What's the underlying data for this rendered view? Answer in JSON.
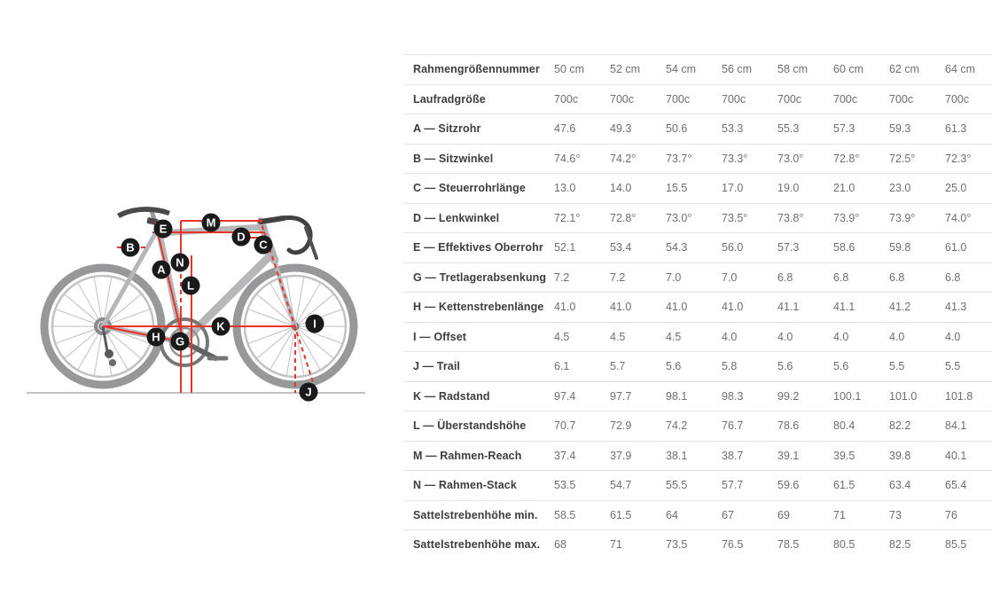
{
  "colors": {
    "accent_red": "#e8352b",
    "frame_gray": "#b7b7b9",
    "component_dark": "#47474a",
    "badge_black": "#1a1a1c",
    "table_border": "#e4e4e4",
    "label_text": "#3d3d3d",
    "value_text": "#6e6e6e",
    "ground_line": "#aeaeb0"
  },
  "diagram": {
    "name": "bike-geometry-diagram",
    "badges": [
      "A",
      "B",
      "C",
      "D",
      "E",
      "G",
      "H",
      "I",
      "J",
      "K",
      "L",
      "M",
      "N"
    ]
  },
  "table": {
    "rows": [
      {
        "label": "Rahmengrößennummer",
        "values": [
          "50 cm",
          "52 cm",
          "54 cm",
          "56 cm",
          "58 cm",
          "60 cm",
          "62 cm",
          "64 cm"
        ]
      },
      {
        "label": "Laufradgröße",
        "values": [
          "700c",
          "700c",
          "700c",
          "700c",
          "700c",
          "700c",
          "700c",
          "700c"
        ]
      },
      {
        "label": "A — Sitzrohr",
        "values": [
          "47.6",
          "49.3",
          "50.6",
          "53.3",
          "55.3",
          "57.3",
          "59.3",
          "61.3"
        ]
      },
      {
        "label": "B — Sitzwinkel",
        "values": [
          "74.6°",
          "74.2°",
          "73.7°",
          "73.3°",
          "73.0°",
          "72.8°",
          "72.5°",
          "72.3°"
        ]
      },
      {
        "label": "C — Steuerrohrlänge",
        "values": [
          "13.0",
          "14.0",
          "15.5",
          "17.0",
          "19.0",
          "21.0",
          "23.0",
          "25.0"
        ]
      },
      {
        "label": "D — Lenkwinkel",
        "values": [
          "72.1°",
          "72.8°",
          "73.0°",
          "73.5°",
          "73.8°",
          "73.9°",
          "73.9°",
          "74.0°"
        ]
      },
      {
        "label": "E — Effektives Oberrohr",
        "values": [
          "52.1",
          "53.4",
          "54.3",
          "56.0",
          "57.3",
          "58.6",
          "59.8",
          "61.0"
        ]
      },
      {
        "label": "G — Tretlagerabsenkung",
        "values": [
          "7.2",
          "7.2",
          "7.0",
          "7.0",
          "6.8",
          "6.8",
          "6.8",
          "6.8"
        ]
      },
      {
        "label": "H — Kettenstrebenlänge",
        "values": [
          "41.0",
          "41.0",
          "41.0",
          "41.0",
          "41.1",
          "41.1",
          "41.2",
          "41.3"
        ]
      },
      {
        "label": "I — Offset",
        "values": [
          "4.5",
          "4.5",
          "4.5",
          "4.0",
          "4.0",
          "4.0",
          "4.0",
          "4.0"
        ]
      },
      {
        "label": "J — Trail",
        "values": [
          "6.1",
          "5.7",
          "5.6",
          "5.8",
          "5.6",
          "5.6",
          "5.5",
          "5.5"
        ]
      },
      {
        "label": "K — Radstand",
        "values": [
          "97.4",
          "97.7",
          "98.1",
          "98.3",
          "99.2",
          "100.1",
          "101.0",
          "101.8"
        ]
      },
      {
        "label": "L — Überstandshöhe",
        "values": [
          "70.7",
          "72.9",
          "74.2",
          "76.7",
          "78.6",
          "80.4",
          "82.2",
          "84.1"
        ]
      },
      {
        "label": "M — Rahmen-Reach",
        "values": [
          "37.4",
          "37.9",
          "38.1",
          "38.7",
          "39.1",
          "39.5",
          "39.8",
          "40.1"
        ]
      },
      {
        "label": "N — Rahmen-Stack",
        "values": [
          "53.5",
          "54.7",
          "55.5",
          "57.7",
          "59.6",
          "61.5",
          "63.4",
          "65.4"
        ]
      },
      {
        "label": "Sattelstrebenhöhe min.",
        "values": [
          "58.5",
          "61.5",
          "64",
          "67",
          "69",
          "71",
          "73",
          "76"
        ]
      },
      {
        "label": "Sattelstrebenhöhe max.",
        "values": [
          "68",
          "71",
          "73.5",
          "76.5",
          "78.5",
          "80.5",
          "82.5",
          "85.5"
        ]
      }
    ]
  }
}
